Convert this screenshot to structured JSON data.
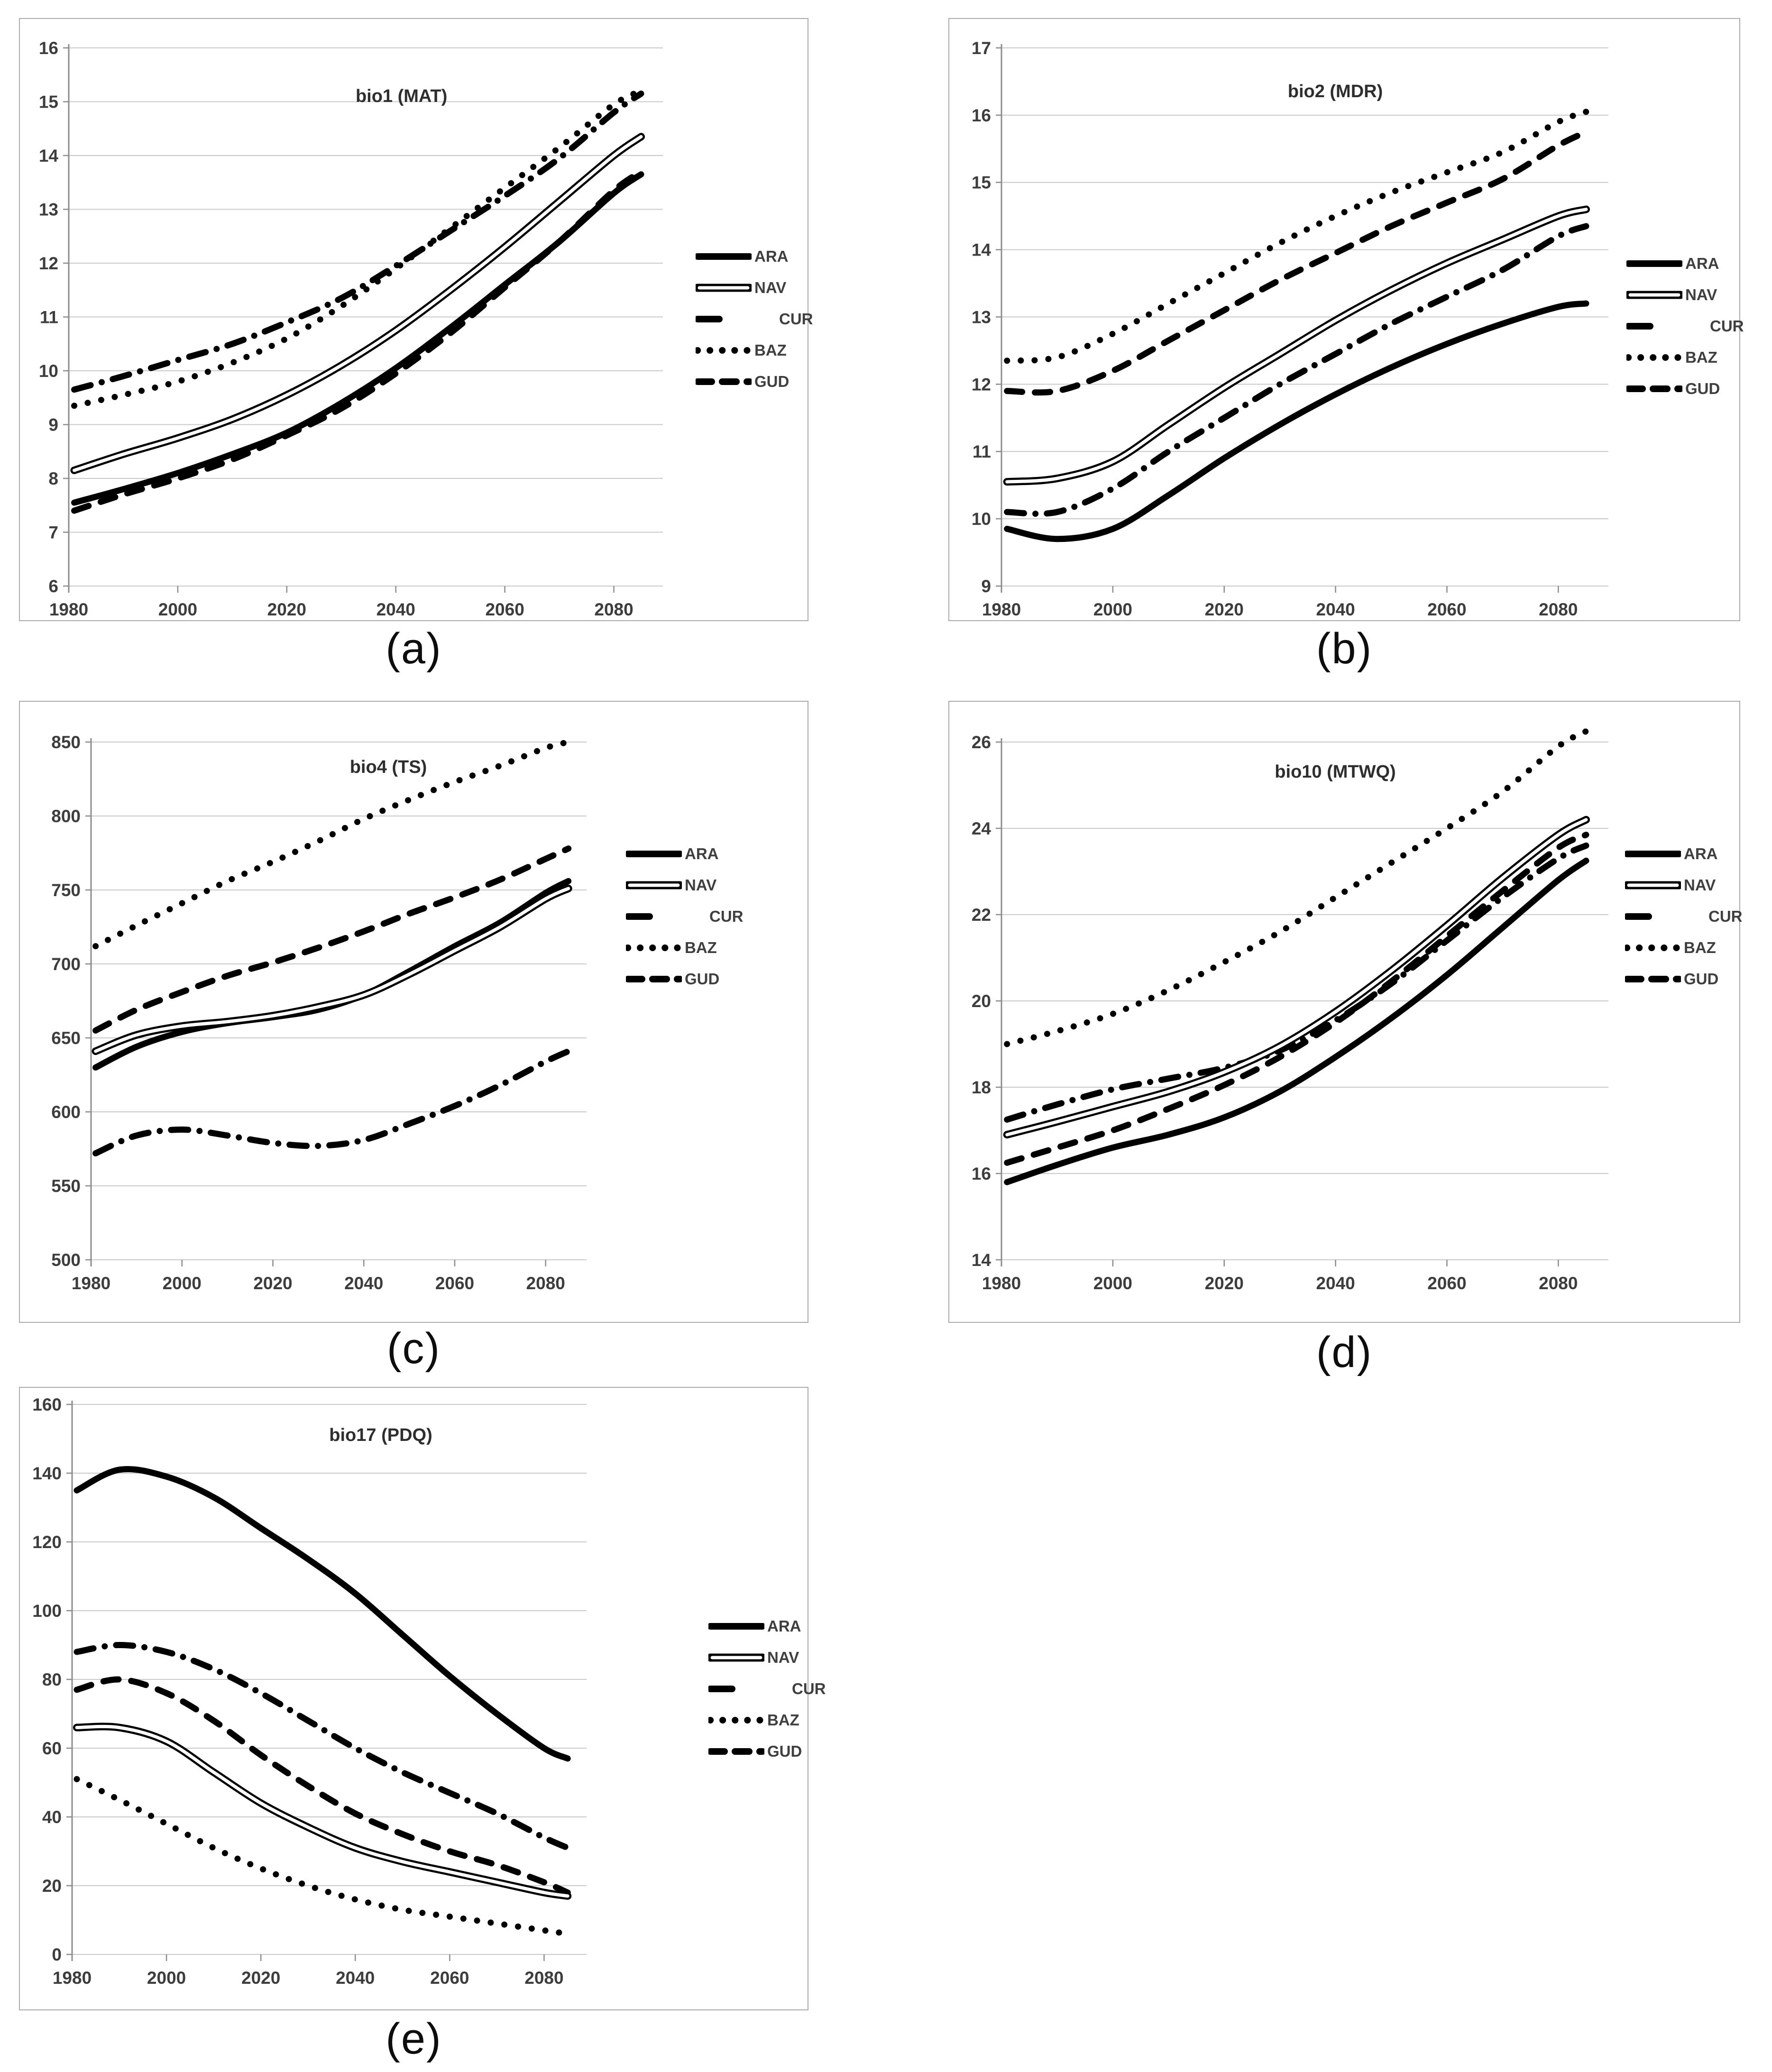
{
  "figure": {
    "colors": {
      "series": "#000000",
      "gridline": "#c9c9c9",
      "axis": "#8c8c8c",
      "tick_text": "#3d3d3d",
      "background": "#ffffff"
    },
    "legend_entries": [
      "ARA",
      "NAV",
      "CUR",
      "BAZ",
      "GUD"
    ]
  },
  "chart_data": [
    {
      "type": "line",
      "title": "bio1 (MAT)",
      "caption": "(a)",
      "xlabel": "",
      "ylabel": "",
      "ylim": [
        6,
        16
      ],
      "ystep": 1,
      "xticks": [
        1980,
        2000,
        2020,
        2040,
        2060,
        2080
      ],
      "grid": "horizontal",
      "legend_position": "right",
      "x": [
        1981,
        1990,
        2000,
        2010,
        2020,
        2030,
        2040,
        2050,
        2060,
        2070,
        2080,
        2085
      ],
      "series": [
        {
          "name": "ARA",
          "style": "solid-thick",
          "values": [
            7.55,
            7.8,
            8.1,
            8.45,
            8.85,
            9.4,
            10.05,
            10.8,
            11.6,
            12.4,
            13.3,
            13.65
          ]
        },
        {
          "name": "NAV",
          "style": "double",
          "values": [
            8.15,
            8.45,
            8.75,
            9.1,
            9.55,
            10.1,
            10.75,
            11.5,
            12.3,
            13.15,
            14.0,
            14.35
          ]
        },
        {
          "name": "CUR",
          "style": "dash-dot",
          "values": [
            9.65,
            9.9,
            10.2,
            10.5,
            10.9,
            11.35,
            11.95,
            12.6,
            13.25,
            13.95,
            14.8,
            15.15
          ]
        },
        {
          "name": "BAZ",
          "style": "dotted",
          "values": [
            9.35,
            9.55,
            9.8,
            10.15,
            10.6,
            11.2,
            11.9,
            12.65,
            13.4,
            14.15,
            14.95,
            15.2
          ]
        },
        {
          "name": "GUD",
          "style": "dashed",
          "values": [
            7.4,
            7.7,
            8.0,
            8.35,
            8.8,
            9.3,
            9.95,
            10.7,
            11.55,
            12.4,
            13.35,
            13.7
          ]
        }
      ]
    },
    {
      "type": "line",
      "title": "bio2 (MDR)",
      "caption": "(b)",
      "xlabel": "",
      "ylabel": "",
      "ylim": [
        9,
        17
      ],
      "ystep": 1,
      "xticks": [
        1980,
        2000,
        2020,
        2040,
        2060,
        2080
      ],
      "grid": "horizontal",
      "legend_position": "right",
      "x": [
        1981,
        1990,
        2000,
        2010,
        2020,
        2030,
        2040,
        2050,
        2060,
        2070,
        2080,
        2085
      ],
      "series": [
        {
          "name": "ARA",
          "style": "solid-thick",
          "values": [
            9.85,
            9.7,
            9.85,
            10.35,
            10.9,
            11.4,
            11.85,
            12.25,
            12.6,
            12.9,
            13.15,
            13.2
          ]
        },
        {
          "name": "NAV",
          "style": "double",
          "values": [
            10.55,
            10.6,
            10.85,
            11.4,
            11.95,
            12.45,
            12.95,
            13.4,
            13.8,
            14.15,
            14.5,
            14.6
          ]
        },
        {
          "name": "CUR",
          "style": "dash-dot",
          "values": [
            10.1,
            10.1,
            10.45,
            11.0,
            11.5,
            12.0,
            12.45,
            12.9,
            13.3,
            13.7,
            14.2,
            14.35
          ]
        },
        {
          "name": "BAZ",
          "style": "dotted",
          "values": [
            12.35,
            12.4,
            12.75,
            13.2,
            13.65,
            14.1,
            14.5,
            14.85,
            15.15,
            15.45,
            15.9,
            16.05
          ]
        },
        {
          "name": "GUD",
          "style": "dashed",
          "values": [
            11.9,
            11.9,
            12.2,
            12.65,
            13.1,
            13.55,
            13.95,
            14.35,
            14.7,
            15.05,
            15.55,
            15.75
          ]
        }
      ]
    },
    {
      "type": "line",
      "title": "bio4 (TS)",
      "caption": "(c)",
      "xlabel": "",
      "ylabel": "",
      "ylim": [
        500,
        850
      ],
      "ystep": 50,
      "xticks": [
        1980,
        2000,
        2020,
        2040,
        2060,
        2080
      ],
      "grid": "horizontal",
      "legend_position": "right",
      "x": [
        1981,
        1990,
        2000,
        2010,
        2020,
        2030,
        2040,
        2050,
        2060,
        2070,
        2080,
        2085
      ],
      "series": [
        {
          "name": "ARA",
          "style": "solid-thick",
          "values": [
            630,
            644,
            654,
            660,
            664,
            669,
            679,
            695,
            712,
            728,
            748,
            756
          ]
        },
        {
          "name": "NAV",
          "style": "double",
          "values": [
            641,
            652,
            658,
            661,
            665,
            671,
            679,
            693,
            709,
            725,
            744,
            751
          ]
        },
        {
          "name": "CUR",
          "style": "dash-dot",
          "values": [
            572,
            584,
            588,
            584,
            579,
            577,
            581,
            592,
            604,
            618,
            634,
            641
          ]
        },
        {
          "name": "BAZ",
          "style": "dotted",
          "values": [
            712,
            726,
            741,
            756,
            769,
            783,
            798,
            811,
            823,
            834,
            846,
            850
          ]
        },
        {
          "name": "GUD",
          "style": "dashed",
          "values": [
            655,
            669,
            681,
            692,
            701,
            711,
            722,
            734,
            745,
            757,
            771,
            778
          ]
        }
      ]
    },
    {
      "type": "line",
      "title": "bio10 (MTWQ)",
      "caption": "(d)",
      "xlabel": "",
      "ylabel": "",
      "ylim": [
        14,
        26
      ],
      "ystep": 2,
      "xticks": [
        1980,
        2000,
        2020,
        2040,
        2060,
        2080
      ],
      "grid": "horizontal",
      "legend_position": "right",
      "x": [
        1981,
        1990,
        2000,
        2010,
        2020,
        2030,
        2040,
        2050,
        2060,
        2070,
        2080,
        2085
      ],
      "series": [
        {
          "name": "ARA",
          "style": "solid-thick",
          "values": [
            15.8,
            16.2,
            16.6,
            16.9,
            17.3,
            17.9,
            18.7,
            19.6,
            20.6,
            21.7,
            22.8,
            23.25
          ]
        },
        {
          "name": "NAV",
          "style": "double",
          "values": [
            16.9,
            17.2,
            17.55,
            17.9,
            18.35,
            18.95,
            19.75,
            20.7,
            21.75,
            22.85,
            23.85,
            24.2
          ]
        },
        {
          "name": "CUR",
          "style": "dash-dot",
          "values": [
            17.25,
            17.6,
            17.95,
            18.2,
            18.45,
            18.85,
            19.55,
            20.4,
            21.4,
            22.4,
            23.3,
            23.6
          ]
        },
        {
          "name": "BAZ",
          "style": "dotted",
          "values": [
            19.0,
            19.3,
            19.7,
            20.25,
            20.9,
            21.6,
            22.4,
            23.2,
            24.0,
            24.85,
            25.9,
            26.25
          ]
        },
        {
          "name": "GUD",
          "style": "dashed",
          "values": [
            16.25,
            16.6,
            17.0,
            17.5,
            18.05,
            18.7,
            19.5,
            20.45,
            21.5,
            22.55,
            23.55,
            23.85
          ]
        }
      ]
    },
    {
      "type": "line",
      "title": "bio17 (PDQ)",
      "caption": "(e)",
      "xlabel": "",
      "ylabel": "",
      "ylim": [
        0,
        160
      ],
      "ystep": 20,
      "xticks": [
        1980,
        2000,
        2020,
        2040,
        2060,
        2080
      ],
      "grid": "horizontal",
      "legend_position": "right",
      "x": [
        1981,
        1990,
        2000,
        2010,
        2020,
        2030,
        2040,
        2050,
        2060,
        2070,
        2080,
        2085
      ],
      "series": [
        {
          "name": "ARA",
          "style": "solid-thick",
          "values": [
            135,
            141,
            139,
            133,
            124,
            115,
            105,
            93,
            81,
            70,
            60,
            57
          ]
        },
        {
          "name": "NAV",
          "style": "double",
          "values": [
            66,
            66,
            62,
            53,
            44,
            37,
            31,
            27,
            24,
            21,
            18,
            17
          ]
        },
        {
          "name": "CUR",
          "style": "dash-dot",
          "values": [
            88,
            90,
            88,
            83,
            76,
            68,
            60,
            53,
            47,
            41,
            34,
            31
          ]
        },
        {
          "name": "BAZ",
          "style": "dotted",
          "values": [
            51,
            45,
            38,
            31,
            25,
            20,
            16,
            13,
            11,
            9,
            7,
            6
          ]
        },
        {
          "name": "GUD",
          "style": "dashed",
          "values": [
            77,
            80,
            76,
            68,
            58,
            49,
            41,
            35,
            30,
            26,
            21,
            18
          ]
        }
      ]
    }
  ]
}
